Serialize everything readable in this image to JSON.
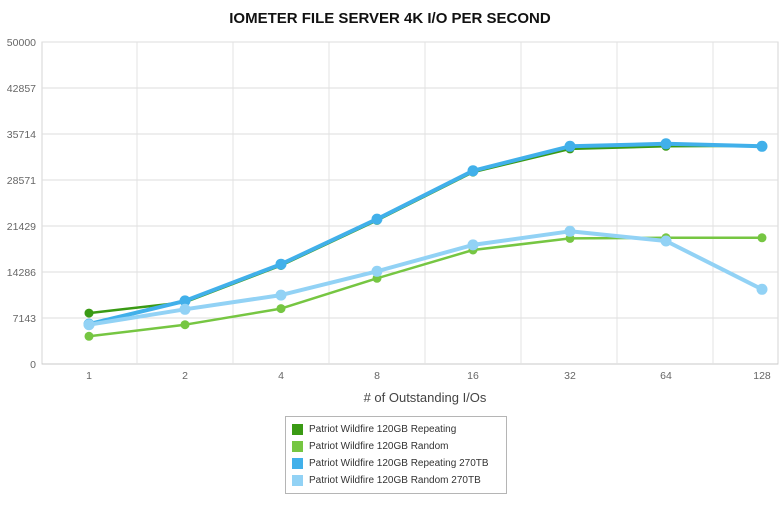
{
  "chart_data": {
    "type": "line",
    "title": "IOMETER FILE SERVER 4K I/O PER SECOND",
    "xlabel": "# of Outstanding I/Os",
    "ylabel": "",
    "categories": [
      "1",
      "2",
      "4",
      "8",
      "16",
      "32",
      "64",
      "128"
    ],
    "y_ticks": [
      "0",
      "7143",
      "14286",
      "21429",
      "28571",
      "35714",
      "42857",
      "50000"
    ],
    "ylim": [
      0,
      50000
    ],
    "grid": true,
    "legend_position": "bottom-center",
    "series": [
      {
        "name": "Patriot Wildfire 120GB Repeating",
        "color": "#3a9a14",
        "values": [
          7900,
          9600,
          15300,
          22300,
          29800,
          33400,
          33800,
          33900
        ]
      },
      {
        "name": "Patriot Wildfire 120GB Random",
        "color": "#76c642",
        "values": [
          4300,
          6100,
          8600,
          13300,
          17700,
          19500,
          19600,
          19600
        ]
      },
      {
        "name": "Patriot Wildfire 120GB Repeating 270TB",
        "color": "#41b0ea",
        "values": [
          6200,
          9800,
          15500,
          22500,
          30000,
          33800,
          34200,
          33800
        ]
      },
      {
        "name": "Patriot Wildfire 120GB Random 270TB",
        "color": "#92d2f5",
        "values": [
          6100,
          8500,
          10700,
          14400,
          18500,
          20600,
          19100,
          11600
        ]
      }
    ]
  }
}
